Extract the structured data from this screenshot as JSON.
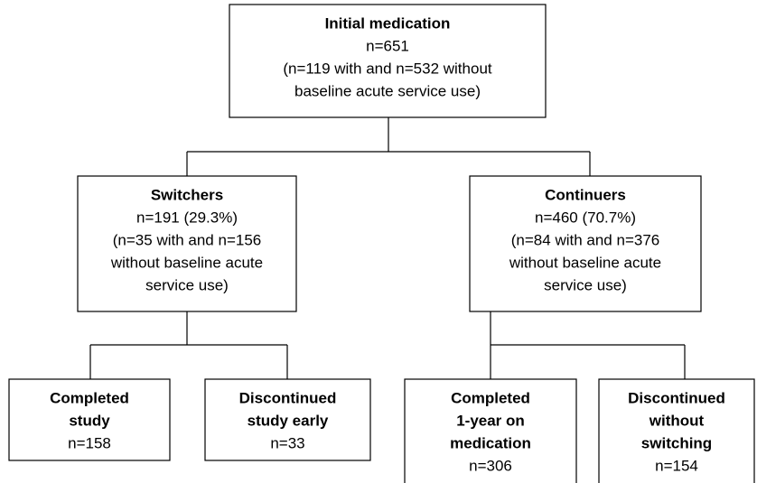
{
  "nodes": [
    {
      "title": [
        "Initial medication"
      ],
      "lines": [
        "n=651",
        "(n=119 with and n=532 without",
        "baseline acute service use)"
      ]
    },
    {
      "title": [
        "Switchers"
      ],
      "lines": [
        "n=191 (29.3%)",
        "(n=35 with and n=156",
        "without baseline acute",
        "service use)"
      ]
    },
    {
      "title": [
        "Continuers"
      ],
      "lines": [
        "n=460 (70.7%)",
        "(n=84 with and n=376",
        "without baseline acute",
        "service use)"
      ]
    },
    {
      "title": [
        "Completed",
        "study"
      ],
      "lines": [
        "n=158"
      ]
    },
    {
      "title": [
        "Discontinued",
        "study early"
      ],
      "lines": [
        "n=33"
      ]
    },
    {
      "title": [
        "Completed",
        "1-year on",
        "medication"
      ],
      "lines": [
        "n=306"
      ]
    },
    {
      "title": [
        "Discontinued",
        "without",
        "switching"
      ],
      "lines": [
        "n=154"
      ]
    }
  ]
}
